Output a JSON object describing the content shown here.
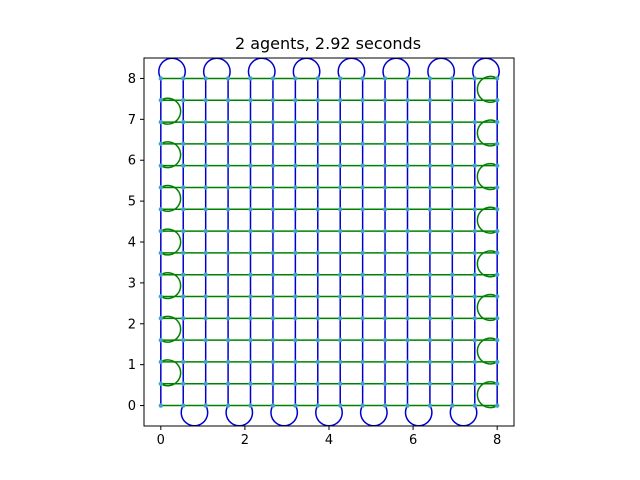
{
  "chart_data": {
    "type": "line",
    "title": "2 agents, 2.92 seconds",
    "xlabel": "",
    "ylabel": "",
    "xlim": [
      -0.4,
      8.4
    ],
    "ylim": [
      -0.5,
      8.5
    ],
    "x_ticks": [
      "0",
      "2",
      "4",
      "6",
      "8"
    ],
    "y_ticks": [
      "0",
      "1",
      "2",
      "3",
      "4",
      "5",
      "6",
      "7",
      "8"
    ],
    "grid": false,
    "legend": "none",
    "grid_step": 0.5333,
    "waypoint_color": "#40a4c8",
    "series": [
      {
        "pattern": "vertical-boustrophedon",
        "color": "#0000cc",
        "columns_x": [
          0,
          0.533,
          1.067,
          1.6,
          2.133,
          2.667,
          3.2,
          3.733,
          4.267,
          4.8,
          5.333,
          5.867,
          6.4,
          6.933,
          7.467,
          8.0
        ],
        "y_range": [
          0,
          8
        ]
      },
      {
        "pattern": "horizontal-boustrophedon",
        "color": "#008000",
        "rows_y": [
          0,
          0.533,
          1.067,
          1.6,
          2.133,
          2.667,
          3.2,
          3.733,
          4.267,
          4.8,
          5.333,
          5.867,
          6.4,
          6.933,
          7.467,
          8.0
        ],
        "x_range": [
          0,
          8
        ]
      }
    ]
  }
}
